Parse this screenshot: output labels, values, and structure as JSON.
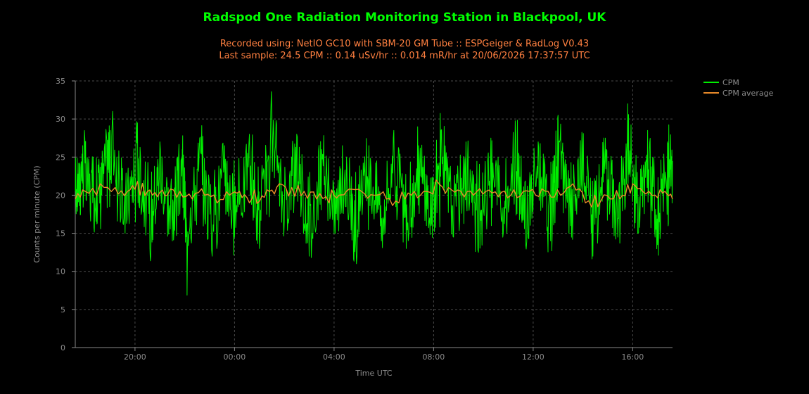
{
  "colors": {
    "background": "#000000",
    "title": "#00ff00",
    "subtitle": "#ff8040",
    "cpm": "#00ee00",
    "cpm_average": "#e98a2a",
    "grid": "#4a4a4a",
    "axis_text": "#8c8c8c"
  },
  "header": {
    "title": "Radspod One Radiation Monitoring Station in Blackpool, UK",
    "subtitle_line1": "Recorded using: NetIO GC10 with SBM-20 GM Tube :: ESPGeiger & RadLog V0.43",
    "subtitle_line2": "Last sample: 24.5 CPM :: 0.14 uSv/hr :: 0.014 mR/hr at 20/06/2026 17:37:57 UTC"
  },
  "chart_data": {
    "type": "line",
    "xlabel": "Time UTC",
    "ylabel": "Counts per minute (CPM)",
    "ylim": [
      0,
      35
    ],
    "yticks": [
      0,
      5,
      10,
      15,
      20,
      25,
      30,
      35
    ],
    "xlim_hours": [
      17.6,
      41.6
    ],
    "xticks": [
      {
        "label": "20:00",
        "hour": 20
      },
      {
        "label": "00:00",
        "hour": 24
      },
      {
        "label": "04:00",
        "hour": 28
      },
      {
        "label": "08:00",
        "hour": 32
      },
      {
        "label": "12:00",
        "hour": 36
      },
      {
        "label": "16:00",
        "hour": 40
      }
    ],
    "grid": true,
    "legend_position": "top-right",
    "series": [
      {
        "name": "CPM",
        "color": "#00ee00",
        "points": [
          [
            17.6,
            20.5
          ],
          [
            17.9,
            26.5
          ],
          [
            18.3,
            19.0
          ],
          [
            18.7,
            24.5
          ],
          [
            19.1,
            31.0
          ],
          [
            19.6,
            15.0
          ],
          [
            20.1,
            29.5
          ],
          [
            20.6,
            13.0
          ],
          [
            21.0,
            27.0
          ],
          [
            21.5,
            14.0
          ],
          [
            21.9,
            26.0
          ],
          [
            22.1,
            10.0
          ],
          [
            22.6,
            27.5
          ],
          [
            23.1,
            12.0
          ],
          [
            23.6,
            26.5
          ],
          [
            24.0,
            14.5
          ],
          [
            24.6,
            28.0
          ],
          [
            25.0,
            13.0
          ],
          [
            25.5,
            31.0
          ],
          [
            26.0,
            16.5
          ],
          [
            26.5,
            28.0
          ],
          [
            27.0,
            12.0
          ],
          [
            27.5,
            26.0
          ],
          [
            28.0,
            15.0
          ],
          [
            28.5,
            25.0
          ],
          [
            28.9,
            11.0
          ],
          [
            29.4,
            26.5
          ],
          [
            29.9,
            14.0
          ],
          [
            30.4,
            28.5
          ],
          [
            30.9,
            13.0
          ],
          [
            31.4,
            26.5
          ],
          [
            31.9,
            16.0
          ],
          [
            32.3,
            28.5
          ],
          [
            32.8,
            14.5
          ],
          [
            33.3,
            27.0
          ],
          [
            33.8,
            12.5
          ],
          [
            34.3,
            27.5
          ],
          [
            34.8,
            15.0
          ],
          [
            35.3,
            28.0
          ],
          [
            35.7,
            13.5
          ],
          [
            36.2,
            27.0
          ],
          [
            36.7,
            14.0
          ],
          [
            37.0,
            30.5
          ],
          [
            37.5,
            16.0
          ],
          [
            38.0,
            26.5
          ],
          [
            38.4,
            12.0
          ],
          [
            38.9,
            27.5
          ],
          [
            39.4,
            14.5
          ],
          [
            39.8,
            32.0
          ],
          [
            40.2,
            15.0
          ],
          [
            40.6,
            28.5
          ],
          [
            41.0,
            13.5
          ],
          [
            41.4,
            27.0
          ],
          [
            41.6,
            24.5
          ]
        ]
      },
      {
        "name": "CPM average",
        "color": "#e98a2a",
        "points": [
          [
            17.6,
            19.5
          ],
          [
            18.0,
            20.5
          ],
          [
            18.6,
            21.5
          ],
          [
            19.2,
            21.0
          ],
          [
            19.7,
            20.5
          ],
          [
            20.1,
            21.8
          ],
          [
            20.5,
            20.5
          ],
          [
            20.9,
            19.8
          ],
          [
            21.3,
            20.0
          ],
          [
            21.8,
            20.5
          ],
          [
            22.3,
            19.5
          ],
          [
            22.8,
            20.0
          ],
          [
            23.3,
            19.0
          ],
          [
            23.8,
            20.0
          ],
          [
            24.2,
            20.5
          ],
          [
            24.6,
            19.0
          ],
          [
            25.0,
            19.2
          ],
          [
            25.4,
            20.5
          ],
          [
            25.8,
            21.5
          ],
          [
            26.3,
            21.0
          ],
          [
            26.8,
            20.5
          ],
          [
            27.3,
            19.5
          ],
          [
            27.8,
            19.0
          ],
          [
            28.2,
            20.0
          ],
          [
            28.6,
            20.8
          ],
          [
            29.1,
            20.5
          ],
          [
            29.6,
            20.0
          ],
          [
            30.1,
            19.5
          ],
          [
            30.6,
            19.0
          ],
          [
            31.1,
            20.0
          ],
          [
            31.6,
            20.5
          ],
          [
            32.1,
            22.0
          ],
          [
            32.6,
            21.0
          ],
          [
            33.1,
            20.5
          ],
          [
            33.6,
            20.0
          ],
          [
            34.1,
            20.5
          ],
          [
            34.6,
            19.8
          ],
          [
            35.1,
            20.0
          ],
          [
            35.6,
            20.5
          ],
          [
            36.1,
            20.0
          ],
          [
            36.6,
            20.5
          ],
          [
            37.1,
            20.0
          ],
          [
            37.6,
            21.5
          ],
          [
            38.1,
            19.0
          ],
          [
            38.6,
            18.5
          ],
          [
            39.1,
            19.5
          ],
          [
            39.6,
            20.0
          ],
          [
            40.0,
            21.5
          ],
          [
            40.4,
            20.5
          ],
          [
            40.9,
            20.0
          ],
          [
            41.3,
            20.5
          ],
          [
            41.6,
            19.5
          ]
        ]
      }
    ]
  }
}
